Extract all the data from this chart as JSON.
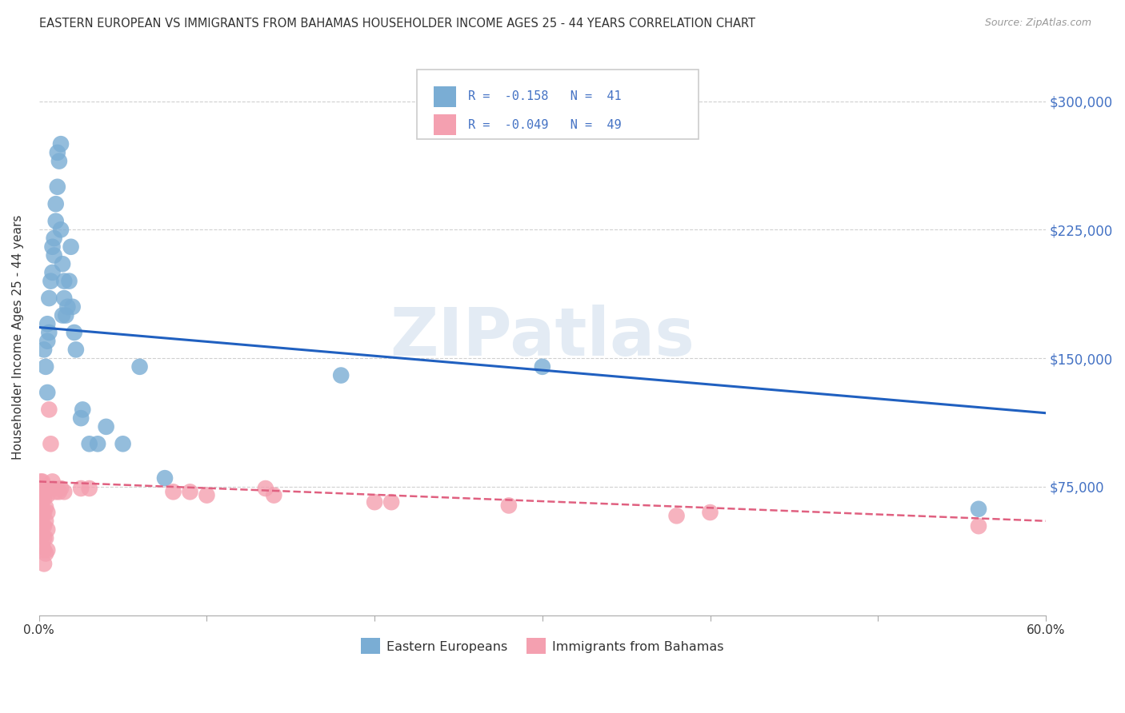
{
  "title": "EASTERN EUROPEAN VS IMMIGRANTS FROM BAHAMAS HOUSEHOLDER INCOME AGES 25 - 44 YEARS CORRELATION CHART",
  "source": "Source: ZipAtlas.com",
  "ylabel": "Householder Income Ages 25 - 44 years",
  "ytick_labels": [
    "$75,000",
    "$150,000",
    "$225,000",
    "$300,000"
  ],
  "ytick_vals": [
    75000,
    150000,
    225000,
    300000
  ],
  "ylim": [
    0,
    325000
  ],
  "xlim": [
    0.0,
    0.6
  ],
  "watermark": "ZIPatlas",
  "legend_blue_R": "-0.158",
  "legend_blue_N": "41",
  "legend_pink_R": "-0.049",
  "legend_pink_N": "49",
  "blue_color": "#7aadd4",
  "pink_color": "#f4a0b0",
  "line_blue": "#2060c0",
  "line_pink": "#e06080",
  "blue_scatter": [
    [
      0.003,
      155000
    ],
    [
      0.004,
      145000
    ],
    [
      0.005,
      160000
    ],
    [
      0.005,
      130000
    ],
    [
      0.005,
      170000
    ],
    [
      0.006,
      185000
    ],
    [
      0.006,
      165000
    ],
    [
      0.007,
      195000
    ],
    [
      0.008,
      215000
    ],
    [
      0.008,
      200000
    ],
    [
      0.009,
      210000
    ],
    [
      0.009,
      220000
    ],
    [
      0.01,
      230000
    ],
    [
      0.01,
      240000
    ],
    [
      0.011,
      250000
    ],
    [
      0.011,
      270000
    ],
    [
      0.012,
      265000
    ],
    [
      0.013,
      275000
    ],
    [
      0.013,
      225000
    ],
    [
      0.014,
      205000
    ],
    [
      0.014,
      175000
    ],
    [
      0.015,
      195000
    ],
    [
      0.015,
      185000
    ],
    [
      0.016,
      175000
    ],
    [
      0.017,
      180000
    ],
    [
      0.018,
      195000
    ],
    [
      0.019,
      215000
    ],
    [
      0.02,
      180000
    ],
    [
      0.021,
      165000
    ],
    [
      0.022,
      155000
    ],
    [
      0.025,
      115000
    ],
    [
      0.026,
      120000
    ],
    [
      0.03,
      100000
    ],
    [
      0.035,
      100000
    ],
    [
      0.04,
      110000
    ],
    [
      0.05,
      100000
    ],
    [
      0.06,
      145000
    ],
    [
      0.075,
      80000
    ],
    [
      0.18,
      140000
    ],
    [
      0.3,
      145000
    ],
    [
      0.56,
      62000
    ]
  ],
  "pink_scatter": [
    [
      0.001,
      78000
    ],
    [
      0.001,
      74000
    ],
    [
      0.001,
      70000
    ],
    [
      0.001,
      65000
    ],
    [
      0.002,
      78000
    ],
    [
      0.002,
      72000
    ],
    [
      0.002,
      68000
    ],
    [
      0.002,
      62000
    ],
    [
      0.002,
      58000
    ],
    [
      0.002,
      52000
    ],
    [
      0.002,
      46000
    ],
    [
      0.002,
      40000
    ],
    [
      0.003,
      75000
    ],
    [
      0.003,
      68000
    ],
    [
      0.003,
      60000
    ],
    [
      0.003,
      52000
    ],
    [
      0.003,
      45000
    ],
    [
      0.003,
      38000
    ],
    [
      0.003,
      30000
    ],
    [
      0.004,
      72000
    ],
    [
      0.004,
      63000
    ],
    [
      0.004,
      55000
    ],
    [
      0.004,
      45000
    ],
    [
      0.004,
      36000
    ],
    [
      0.005,
      70000
    ],
    [
      0.005,
      60000
    ],
    [
      0.005,
      50000
    ],
    [
      0.005,
      38000
    ],
    [
      0.006,
      120000
    ],
    [
      0.007,
      100000
    ],
    [
      0.008,
      78000
    ],
    [
      0.009,
      74000
    ],
    [
      0.01,
      72000
    ],
    [
      0.012,
      72000
    ],
    [
      0.013,
      74000
    ],
    [
      0.015,
      72000
    ],
    [
      0.025,
      74000
    ],
    [
      0.03,
      74000
    ],
    [
      0.08,
      72000
    ],
    [
      0.09,
      72000
    ],
    [
      0.1,
      70000
    ],
    [
      0.135,
      74000
    ],
    [
      0.14,
      70000
    ],
    [
      0.2,
      66000
    ],
    [
      0.21,
      66000
    ],
    [
      0.28,
      64000
    ],
    [
      0.38,
      58000
    ],
    [
      0.4,
      60000
    ],
    [
      0.56,
      52000
    ]
  ],
  "blue_line_x": [
    0.0,
    0.6
  ],
  "blue_line_y": [
    168000,
    118000
  ],
  "pink_line_x": [
    0.0,
    0.6
  ],
  "pink_line_y": [
    78000,
    55000
  ],
  "grid_color": "#d0d0d0",
  "bg_color": "#ffffff",
  "title_fontsize": 10.5,
  "axis_fontsize": 11,
  "tick_fontsize": 11
}
